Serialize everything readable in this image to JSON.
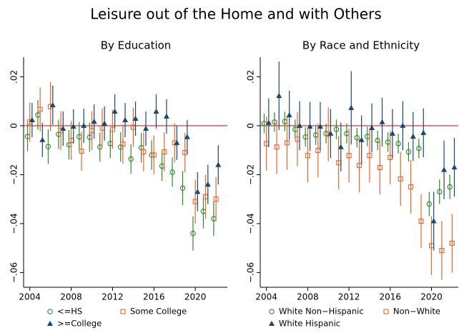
{
  "title": "Leisure out of the Home and with Others",
  "chart_data": [
    {
      "type": "errorbar",
      "title": "By Education",
      "x": [
        2004,
        2005,
        2006,
        2007,
        2008,
        2009,
        2010,
        2011,
        2012,
        2013,
        2014,
        2015,
        2016,
        2017,
        2018,
        2019,
        2020,
        2021,
        2022
      ],
      "xlim": [
        2003.4,
        2023.1
      ],
      "xticks": [
        2004,
        2008,
        2012,
        2016,
        2020
      ],
      "ylim": [
        -0.066,
        0.028
      ],
      "yticks": [
        {
          "value": 0.02,
          "label": ".02"
        },
        0,
        {
          "value": -0.02,
          "label": "−.02"
        },
        {
          "value": -0.04,
          "label": "−.04"
        },
        {
          "value": -0.06,
          "label": "−.06"
        }
      ],
      "hline": 0,
      "hline_color": "#d0202a",
      "series": [
        {
          "name": "<=HS",
          "color": "#2f8a2a",
          "marker": "circle",
          "values": [
            -0.0044,
            0.0044,
            -0.0085,
            -0.0035,
            -0.0078,
            -0.0045,
            -0.0047,
            -0.0087,
            -0.0073,
            -0.0087,
            -0.0136,
            -0.009,
            -0.012,
            -0.0165,
            -0.019,
            -0.0255,
            -0.044,
            -0.035,
            -0.038
          ],
          "errors": [
            0.006,
            0.006,
            0.007,
            0.006,
            0.006,
            0.006,
            0.006,
            0.006,
            0.006,
            0.006,
            0.006,
            0.006,
            0.006,
            0.006,
            0.006,
            0.007,
            0.007,
            0.007,
            0.007
          ]
        },
        {
          "name": "Some College",
          "color": "#e8642c",
          "marker": "square",
          "values": [
            0.0015,
            0.0067,
            0.0078,
            -0.002,
            -0.006,
            -0.0104,
            -0.002,
            -0.001,
            -0.0015,
            -0.0075,
            -0.0006,
            -0.0107,
            -0.012,
            -0.0107,
            -0.007,
            -0.011,
            -0.031,
            -0.029,
            -0.03
          ],
          "errors": [
            0.008,
            0.009,
            0.01,
            0.008,
            0.008,
            0.008,
            0.008,
            0.008,
            0.008,
            0.008,
            0.008,
            0.008,
            0.008,
            0.008,
            0.008,
            0.008,
            0.009,
            0.009,
            0.009
          ]
        },
        {
          "name": ">=College",
          "color": "#1a476f",
          "marker": "triangle",
          "values": [
            0.0023,
            -0.0058,
            0.0084,
            -0.0012,
            -0.0003,
            0,
            0.0017,
            0.0009,
            0.0058,
            0.0023,
            0.0029,
            -0.0012,
            0.0058,
            0.0038,
            -0.007,
            -0.0046,
            -0.027,
            -0.024,
            -0.016
          ],
          "errors": [
            0.007,
            0.007,
            0.008,
            0.007,
            0.007,
            0.007,
            0.007,
            0.007,
            0.007,
            0.007,
            0.007,
            0.007,
            0.007,
            0.007,
            0.007,
            0.007,
            0.008,
            0.008,
            0.008
          ]
        }
      ]
    },
    {
      "type": "errorbar",
      "title": "By Race and Ethnicity",
      "x": [
        2004,
        2005,
        2006,
        2007,
        2008,
        2009,
        2010,
        2011,
        2012,
        2013,
        2014,
        2015,
        2016,
        2017,
        2018,
        2019,
        2020,
        2021,
        2022
      ],
      "xlim": [
        2003.4,
        2022.6
      ],
      "xticks": [
        2004,
        2008,
        2012,
        2016,
        2020
      ],
      "ylim": [
        -0.066,
        0.028
      ],
      "yticks": [
        {
          "value": 0.02,
          "label": ".02"
        },
        0,
        {
          "value": -0.02,
          "label": "−.02"
        },
        {
          "value": -0.04,
          "label": "−.04"
        },
        {
          "value": -0.06,
          "label": "−.06"
        }
      ],
      "hline": 0,
      "hline_color": "#d0202a",
      "series": [
        {
          "name": "White Non−Hispanic",
          "color": "#2f8a2a",
          "marker": "circle",
          "values": [
            0.0009,
            0.0015,
            0.0017,
            -0.0015,
            -0.0046,
            -0.0038,
            -0.0032,
            -0.0015,
            -0.0032,
            -0.0049,
            -0.0044,
            -0.006,
            -0.0067,
            -0.0073,
            -0.0107,
            -0.0093,
            -0.032,
            -0.027,
            -0.025
          ],
          "errors": [
            0.004,
            0.004,
            0.004,
            0.004,
            0.004,
            0.004,
            0.004,
            0.004,
            0.004,
            0.004,
            0.004,
            0.004,
            0.004,
            0.004,
            0.004,
            0.004,
            0.005,
            0.005,
            0.005
          ]
        },
        {
          "name": "Non−White",
          "color": "#e8642c",
          "marker": "square",
          "values": [
            -0.0073,
            -0.0087,
            -0.007,
            -0.0055,
            -0.0122,
            -0.0101,
            -0.0035,
            -0.0151,
            -0.0122,
            -0.0162,
            -0.0122,
            -0.0171,
            -0.013,
            -0.0217,
            -0.025,
            -0.039,
            -0.049,
            -0.051,
            -0.048
          ],
          "errors": [
            0.011,
            0.011,
            0.011,
            0.011,
            0.011,
            0.011,
            0.011,
            0.011,
            0.011,
            0.011,
            0.011,
            0.011,
            0.011,
            0.011,
            0.011,
            0.011,
            0.012,
            0.012,
            0.012
          ]
        },
        {
          "name": "White Hispanic",
          "color": "#1a476f",
          "marker": "triangle",
          "values": [
            0.0012,
            0.0122,
            0.0043,
            0,
            -0.0003,
            -0.0003,
            -0.0032,
            -0.0087,
            0.0073,
            -0.0058,
            -0.0009,
            0.0015,
            -0.0032,
            0,
            -0.0044,
            -0.0029,
            -0.039,
            -0.018,
            -0.017
          ],
          "errors": [
            0.01,
            0.014,
            0.01,
            0.01,
            0.01,
            0.01,
            0.01,
            0.01,
            0.015,
            0.01,
            0.01,
            0.01,
            0.01,
            0.01,
            0.01,
            0.01,
            0.012,
            0.012,
            0.012
          ]
        }
      ]
    }
  ]
}
